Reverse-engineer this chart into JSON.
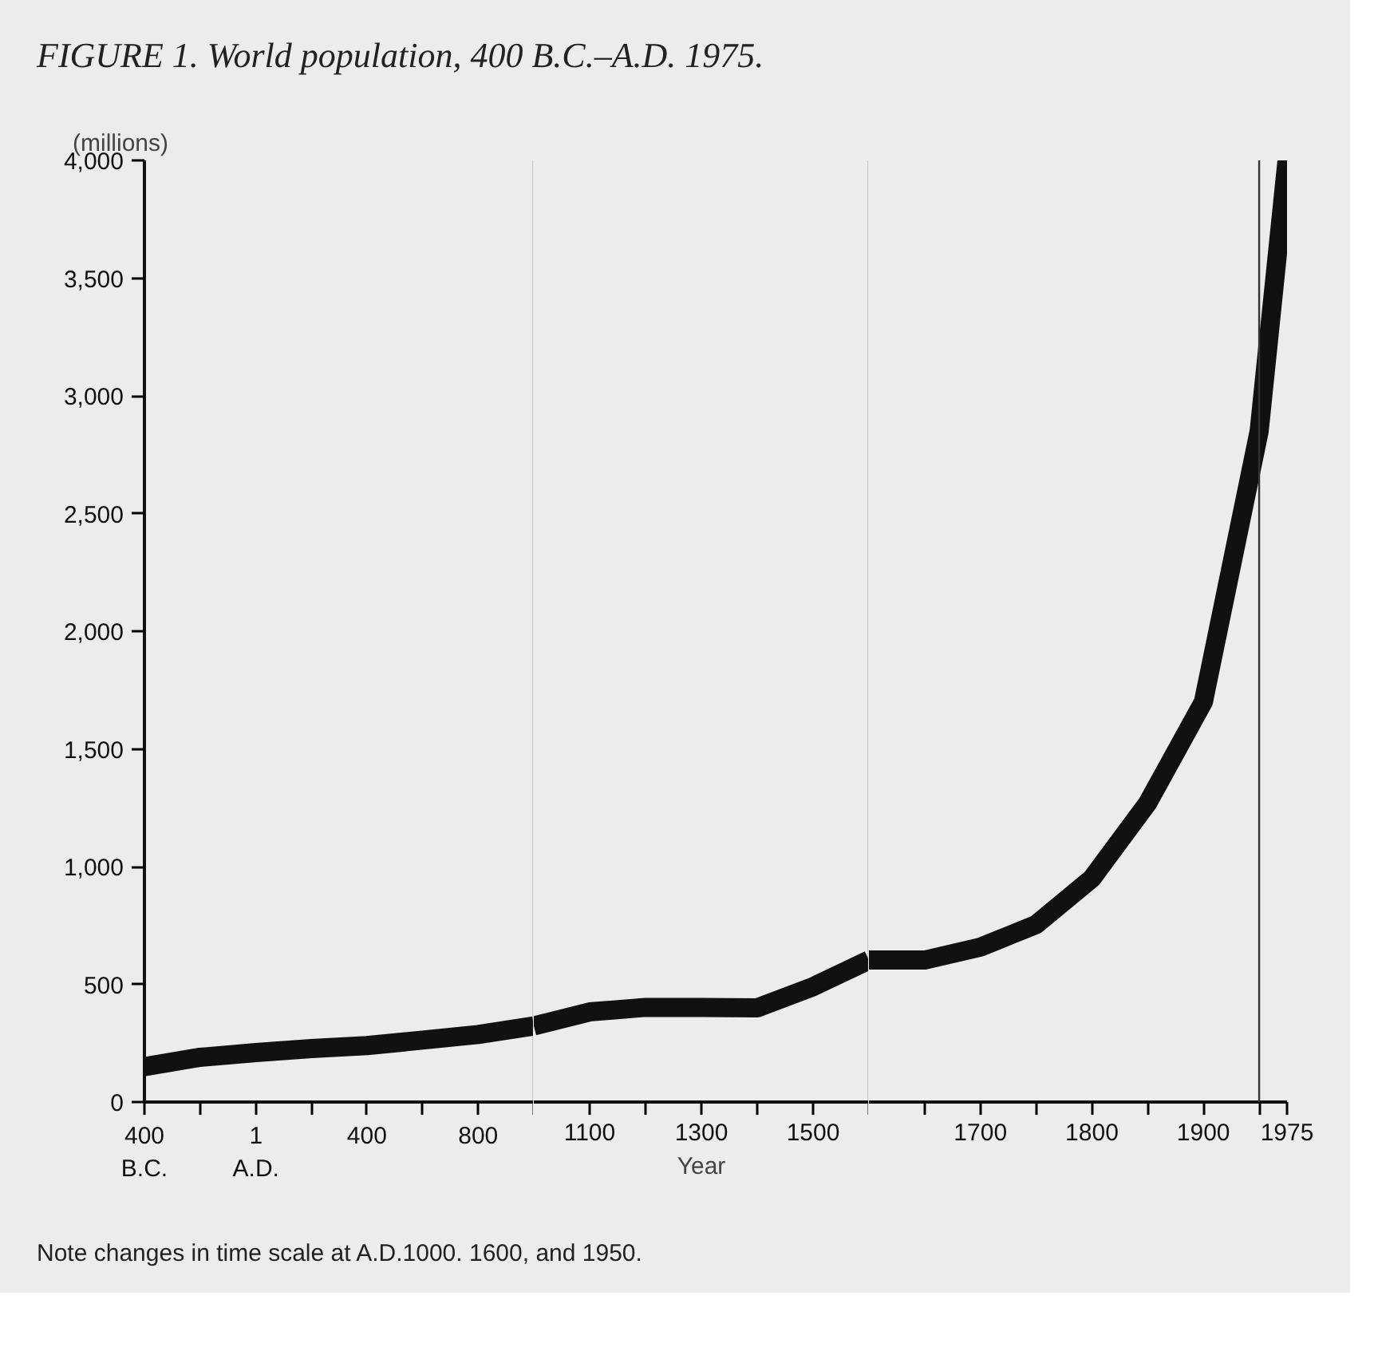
{
  "chart_data": [
    {
      "type": "line",
      "title": "FIGURE 1. World population, 400 B.C.–A.D. 1975.",
      "ylabel": "(millions)",
      "annotations": [
        "Note changes in time scale at A.D.1000. 1600, and 1950."
      ],
      "x": [
        -400,
        -200,
        1,
        200,
        400,
        600,
        800,
        1000
      ],
      "series": [
        {
          "color": "#111111",
          "values": [
            150,
            190,
            210,
            227,
            240,
            263,
            287,
            323
          ]
        }
      ],
      "xlim": [
        -400,
        1000
      ],
      "xticks": [
        {
          "value": -400,
          "label": "400 B.C."
        },
        {
          "value": -200,
          "label": null
        },
        {
          "value": 1,
          "label": "1 A.D."
        },
        {
          "value": 200,
          "label": null
        },
        400,
        {
          "value": 600,
          "label": null
        },
        800,
        {
          "value": 1000,
          "label": null
        }
      ],
      "ylim": [
        0,
        4000
      ],
      "yticks": [
        {
          "value": 0,
          "label": "0"
        },
        {
          "value": 500,
          "label": "500"
        },
        {
          "value": 1000,
          "label": "1,000"
        },
        {
          "value": 1500,
          "label": "1,500"
        },
        {
          "value": 2000,
          "label": "2,000"
        },
        {
          "value": 2500,
          "label": "2,500"
        },
        {
          "value": 3000,
          "label": "3,000"
        },
        {
          "value": 3500,
          "label": "3,500"
        },
        {
          "value": 4000,
          "label": "4,000"
        }
      ],
      "ref_lines": [
        {
          "axis": "x",
          "value": 1000,
          "color": "#333333"
        }
      ],
      "grid": false,
      "marker": "none",
      "line_style": "solid"
    },
    {
      "type": "line",
      "xlabel": "Year",
      "x": [
        1000,
        1100,
        1200,
        1300,
        1400,
        1500,
        1600
      ],
      "series": [
        {
          "color": "#111111",
          "values": [
            323,
            383,
            402,
            402,
            400,
            490,
            603
          ]
        }
      ],
      "xlim": [
        1000,
        1600
      ],
      "xticks": [
        1100,
        {
          "value": 1200,
          "label": null
        },
        1300,
        {
          "value": 1400,
          "label": null
        },
        1500,
        {
          "value": 1600,
          "label": null
        }
      ],
      "ylim": [
        0,
        4000
      ],
      "ref_lines": [
        {
          "axis": "x",
          "value": 1600,
          "color": "#333333"
        }
      ],
      "tick_labels": "x",
      "grid": false,
      "marker": "none",
      "line_style": "solid"
    },
    {
      "type": "line",
      "x": [
        1600,
        1650,
        1700,
        1750,
        1800,
        1850,
        1900,
        1950,
        1975
      ],
      "series": [
        {
          "color": "#111111",
          "values": [
            603,
            603,
            658,
            754,
            950,
            1270,
            1700,
            2850,
            4000
          ]
        }
      ],
      "xlim": [
        1600,
        1975
      ],
      "xticks": [
        {
          "value": 1650,
          "label": null
        },
        1700,
        {
          "value": 1750,
          "label": null
        },
        1800,
        {
          "value": 1850,
          "label": null
        },
        1900,
        {
          "value": 1950,
          "label": null
        },
        1975
      ],
      "ylim": [
        0,
        4000
      ],
      "ref_lines": [
        {
          "axis": "x",
          "value": 1950,
          "color": "#333333"
        }
      ],
      "tick_labels": "x",
      "grid": false,
      "marker": "none",
      "line_style": "solid"
    }
  ]
}
